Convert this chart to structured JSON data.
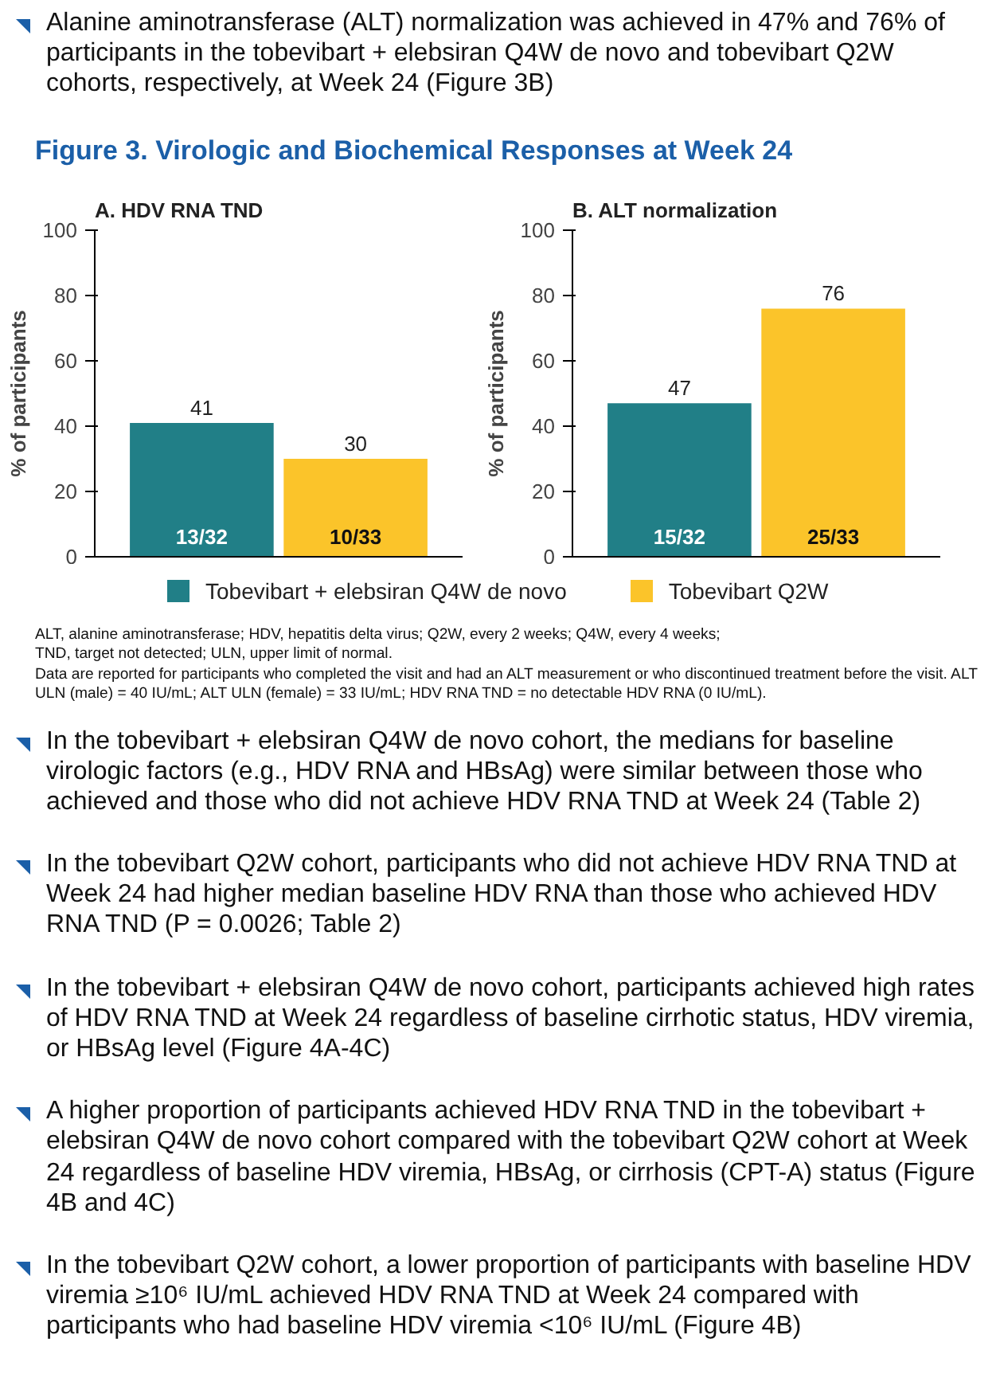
{
  "chart_data": [
    {
      "type": "bar",
      "title": "A. HDV RNA TND",
      "subtitle": "Figure 3. Virologic and Biochemical Responses at Week 24",
      "ylabel": "% of participants",
      "categories": [
        null
      ],
      "series": [
        {
          "name": "Tobevibart + elebsiran Q4W de novo",
          "color": "#217f87",
          "values": [
            41
          ],
          "value_labels": [
            "41"
          ]
        },
        {
          "name": "Tobevibart Q2W",
          "color": "#fbc42a",
          "values": [
            30
          ],
          "value_labels": [
            "30"
          ]
        }
      ],
      "ylim": [
        0,
        100
      ],
      "yticks": [
        0,
        20,
        40,
        60,
        80,
        100
      ],
      "grid": false,
      "legend": "bottom",
      "annotations": [
        {
          "text": "13/32",
          "y": 0
        },
        {
          "text": "10/33",
          "y": 0
        },
        "Alanine aminotransferase (ALT) normalization was achieved in 47% and 76% of participants in the tobevibart + elebsiran Q4W de novo and tobevibart Q2W cohorts, respectively, at Week 24 (Figure 3B)",
        "In the tobevibart + elebsiran Q4W de novo cohort, the medians for baseline virologic factors (e.g., HDV RNA and HBsAg) were similar between those who achieved and those who did not achieve HDV RNA TND at Week 24 (Table 2)",
        "In the tobevibart Q2W cohort, participants who did not achieve HDV RNA TND at Week 24 had higher median baseline HDV RNA than those who achieved HDV RNA TND (P = 0.0026; Table 2)",
        "In the tobevibart + elebsiran Q4W de novo cohort, participants achieved high rates of HDV RNA TND at Week 24 regardless of baseline cirrhotic status, HDV viremia, or HBsAg level (Figure 4A-4C)",
        "A higher proportion of participants achieved HDV RNA TND in the tobevibart + elebsiran Q4W de novo cohort compared with the tobevibart Q2W cohort at Week 24 regardless of baseline HDV viremia, HBsAg, or cirrhosis (CPT-A) status (Figure 4B and 4C)",
        "In the tobevibart Q2W cohort, a lower proportion of participants with baseline HDV viremia ≥10⁶ IU/mL achieved HDV RNA TND at Week 24 compared with participants who had baseline HDV viremia <10⁶ IU/mL (Figure 4B)"
      ]
    },
    {
      "type": "bar",
      "title": "B. ALT normalization",
      "ylabel": "% of participants",
      "categories": [
        null
      ],
      "series": [
        {
          "name": "Tobevibart + elebsiran Q4W de novo",
          "color": "#217f87",
          "values": [
            47
          ],
          "value_labels": [
            "47"
          ]
        },
        {
          "name": "Tobevibart Q2W",
          "color": "#fbc42a",
          "values": [
            76
          ],
          "value_labels": [
            "76"
          ]
        }
      ],
      "ylim": [
        0,
        100
      ],
      "yticks": [
        0,
        20,
        40,
        60,
        80,
        100
      ],
      "grid": false,
      "legend": "bottom",
      "annotations": [
        {
          "text": "15/32",
          "y": 0
        },
        {
          "text": "25/33",
          "y": 0
        },
        "ALT, alanine aminotransferase; HDV, hepatitis delta virus; Q2W, every 2 weeks; Q4W, every 4 weeks;",
        "TND, target not detected; ULN, upper limit of normal.",
        "Data are reported for participants who completed the visit and had an ALT measurement or who discontinued treatment before the visit. ALT ULN (male) = 40 IU/mL; ALT ULN (female) = 33 IU/mL; HDV RNA TND = no detectable HDV RNA (0 IU/mL)."
      ]
    }
  ]
}
